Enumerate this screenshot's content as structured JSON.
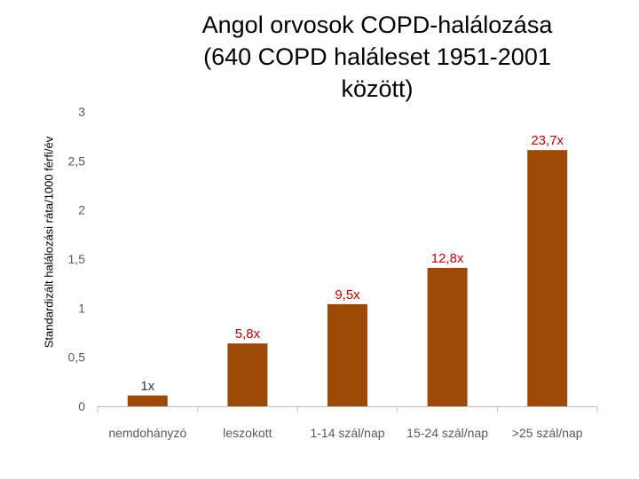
{
  "chart_data": {
    "type": "bar",
    "title": "Angol orvosok COPD-halálozása\n(640 COPD haláleset 1951-2001\nközött)",
    "ylabel": "Standardizált halálozási ráta/1000 férfi/év",
    "xlabel": "",
    "categories": [
      "nemdohányzó",
      "leszokott",
      "1-14 szál/nap",
      "15-24 szál/nap",
      ">25 szál/nap"
    ],
    "values": [
      0.11,
      0.64,
      1.04,
      1.41,
      2.61
    ],
    "data_labels": [
      "1x",
      "5,8x",
      "9,5x",
      "12,8x",
      "23,7x"
    ],
    "label_colors": [
      "#1f3f6e",
      "#c00000",
      "#c00000",
      "#c00000",
      "#c00000"
    ],
    "ylim": [
      0,
      3
    ],
    "yticks": [
      "0",
      "0,5",
      "1",
      "1,5",
      "2",
      "2,5",
      "3"
    ],
    "grid": false,
    "colors": {
      "bar": "#9c4a06",
      "axis": "#bfbfbf",
      "tick_text": "#595959"
    }
  }
}
